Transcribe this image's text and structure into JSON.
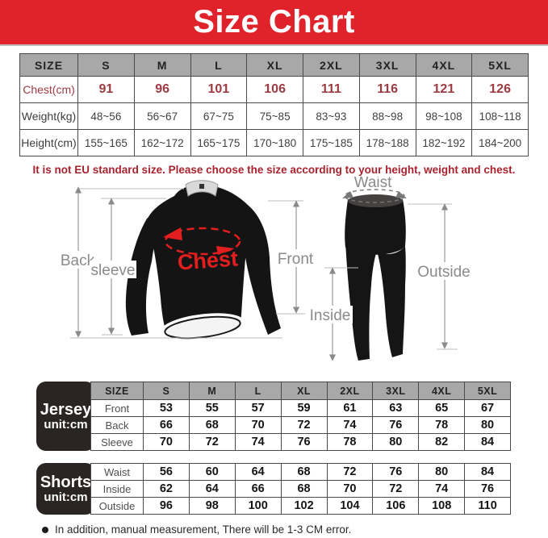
{
  "banner": {
    "title": "Size Chart"
  },
  "size_table": {
    "header": [
      "SIZE",
      "S",
      "M",
      "L",
      "XL",
      "2XL",
      "3XL",
      "4XL",
      "5XL"
    ],
    "rows": [
      {
        "label": "Chest(cm)",
        "highlight": true,
        "values": [
          "91",
          "96",
          "101",
          "106",
          "111",
          "116",
          "121",
          "126"
        ]
      },
      {
        "label": "Weight(kg)",
        "values": [
          "48~56",
          "56~67",
          "67~75",
          "75~85",
          "83~93",
          "88~98",
          "98~108",
          "108~118"
        ]
      },
      {
        "label": "Height(cm)",
        "values": [
          "155~165",
          "162~172",
          "165~175",
          "170~180",
          "175~185",
          "178~188",
          "182~192",
          "184~200"
        ]
      }
    ]
  },
  "note": "It is not EU standard size. Please choose the size according to your height, weight and chest.",
  "diagram": {
    "back": "Back",
    "sleeve": "sleeve",
    "chest": "Chest",
    "front": "Front",
    "waist": "Waist",
    "outside": "Outside",
    "inside": "Inside"
  },
  "jersey_table": {
    "label_line1": "Jersey",
    "label_line2": "unit:cm",
    "header": [
      "SIZE",
      "S",
      "M",
      "L",
      "XL",
      "2XL",
      "3XL",
      "4XL",
      "5XL"
    ],
    "rows": [
      {
        "label": "Front",
        "values": [
          "53",
          "55",
          "57",
          "59",
          "61",
          "63",
          "65",
          "67"
        ]
      },
      {
        "label": "Back",
        "values": [
          "66",
          "68",
          "70",
          "72",
          "74",
          "76",
          "78",
          "80"
        ]
      },
      {
        "label": "Sleeve",
        "values": [
          "70",
          "72",
          "74",
          "76",
          "78",
          "80",
          "82",
          "84"
        ]
      }
    ]
  },
  "shorts_table": {
    "label_line1": "Shorts",
    "label_line2": "unit:cm",
    "rows": [
      {
        "label": "Waist",
        "values": [
          "56",
          "60",
          "64",
          "68",
          "72",
          "76",
          "80",
          "84"
        ]
      },
      {
        "label": "Inside",
        "values": [
          "62",
          "64",
          "66",
          "68",
          "70",
          "72",
          "74",
          "76"
        ]
      },
      {
        "label": "Outside",
        "values": [
          "96",
          "98",
          "100",
          "102",
          "104",
          "106",
          "108",
          "110"
        ]
      }
    ]
  },
  "footer_note": "In addition, manual measurement, There will be 1-3 CM error.",
  "colors": {
    "banner_red": "#e0222a",
    "accent_red": "#9e3b42",
    "note_red": "#a8232e",
    "header_gray": "#a9a8a8",
    "box_black": "#2a2523",
    "chest_red": "#e31e1e",
    "diagram_gray": "#8a8a8a"
  }
}
